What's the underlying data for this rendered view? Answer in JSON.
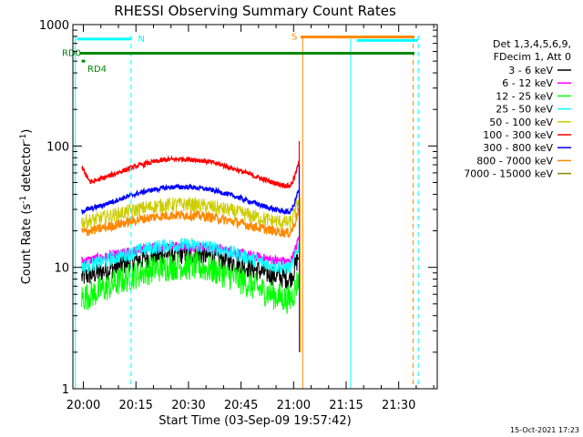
{
  "chart_data": {
    "type": "line",
    "title": "RHESSI Observing Summary Count Rates",
    "xlabel": "Start Time (03-Sep-09 19:57:42)",
    "ylabel_main": "Count Rate (s",
    "ylabel_sup1": "-1",
    "ylabel_mid": " detector",
    "ylabel_sup2": "-1",
    "ylabel_end": ")",
    "y_scale": "log",
    "ylim": [
      1,
      1000
    ],
    "xlim_minutes": [
      -3,
      101
    ],
    "x_ticks": [
      {
        "label": "20:00",
        "t": 0
      },
      {
        "label": "20:15",
        "t": 15
      },
      {
        "label": "20:30",
        "t": 30
      },
      {
        "label": "20:45",
        "t": 45
      },
      {
        "label": "21:00",
        "t": 60
      },
      {
        "label": "21:15",
        "t": 75
      },
      {
        "label": "21:30",
        "t": 90
      }
    ],
    "y_ticks": [
      {
        "label": "1",
        "v": 1
      },
      {
        "label": "10",
        "v": 10
      },
      {
        "label": "100",
        "v": 100
      },
      {
        "label": "1000",
        "v": 1000
      }
    ],
    "legend_header": [
      "Det 1,3,4,5,6,9,",
      "FDecim 1, Att 0"
    ],
    "legend_placement": "right",
    "series": [
      {
        "name": "3 - 6 keV",
        "color": "#000000",
        "base": 10.5,
        "amp": 2.5,
        "noise": 0.09
      },
      {
        "name": "6 - 12 keV",
        "color": "#ff00ff",
        "base": 13,
        "amp": 2.0,
        "noise": 0.04
      },
      {
        "name": "12 - 25 keV",
        "color": "#00ff00",
        "base": 7.8,
        "amp": 2.5,
        "noise": 0.12
      },
      {
        "name": "25 - 50 keV",
        "color": "#00ffff",
        "base": 12.5,
        "amp": 2.8,
        "noise": 0.06
      },
      {
        "name": "50 - 100 keV",
        "color": "#cccc00",
        "base": 28,
        "amp": 5,
        "noise": 0.06
      },
      {
        "name": "100 - 300 keV",
        "color": "#ff0000",
        "base": 62,
        "amp": 16,
        "noise": 0.02
      },
      {
        "name": "300 - 800 keV",
        "color": "#0000ff",
        "base": 37,
        "amp": 9,
        "noise": 0.02
      },
      {
        "name": "800 - 7000 keV",
        "color": "#ff8800",
        "base": 23,
        "amp": 4,
        "noise": 0.04
      },
      {
        "name": "7000 - 15000 keV",
        "color": "#888800",
        "base": 0,
        "amp": 0,
        "noise": 0
      }
    ],
    "flag_bars": [
      {
        "label": "N",
        "color": "#00ffff",
        "t_start": -1.8,
        "t_end": 13.5,
        "level": 760
      },
      {
        "label": "S",
        "color": "#ff8800",
        "t_start": 62,
        "t_end": 94.5,
        "level": 790
      },
      {
        "label": "RD0",
        "color": "#008800",
        "t_start": -1,
        "t_end": 94.5,
        "level": 580
      },
      {
        "label": "RD4",
        "color": "#008800",
        "t_start": -0.5,
        "t_end": 0.5,
        "level": 500
      },
      {
        "label": "",
        "color": "#00ffff",
        "t_start": 78,
        "t_end": 95.5,
        "level": 740
      }
    ],
    "event_lines": [
      {
        "t": -2.3,
        "color": "#00ffff",
        "style": "solid"
      },
      {
        "t": 13.6,
        "color": "#00ffff",
        "style": "dashed"
      },
      {
        "t": 62.6,
        "color": "#ff8800",
        "style": "solid"
      },
      {
        "t": 76.3,
        "color": "#00ffff",
        "style": "solid"
      },
      {
        "t": 94.1,
        "color": "#ff8800",
        "style": "dashed"
      },
      {
        "t": 95.6,
        "color": "#00ffff",
        "style": "dashed"
      }
    ],
    "data_end_minutes": 61.5,
    "grid": false
  },
  "timestamp": "15-Oct-2021 17:23"
}
